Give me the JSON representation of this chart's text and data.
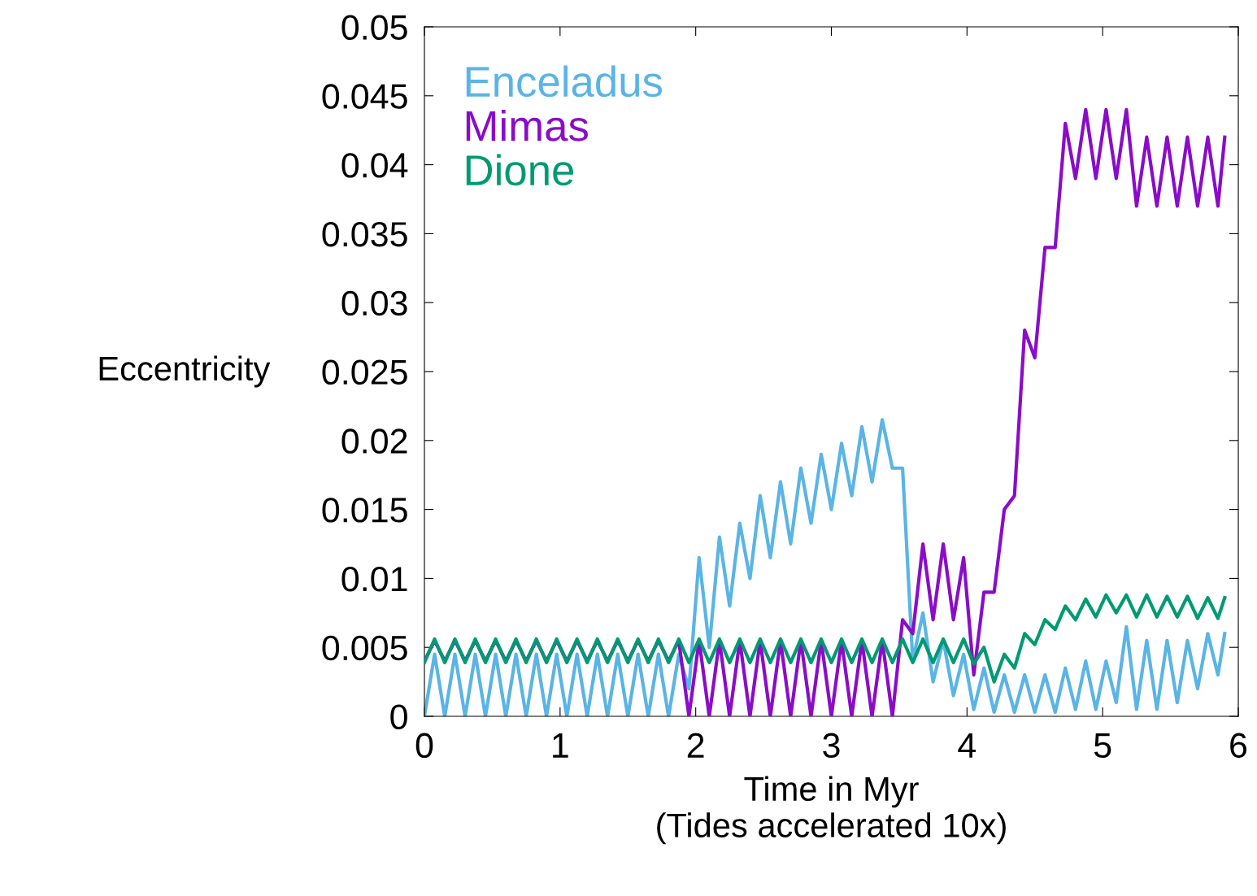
{
  "chart_data": {
    "type": "line",
    "xlabel": "Time in Myr\n(Tides accelerated 10x)",
    "ylabel": "Eccentricity",
    "xlim": [
      0,
      6
    ],
    "xticks": [
      0,
      1,
      2,
      3,
      4,
      5,
      6
    ],
    "ylim": [
      0,
      0.05
    ],
    "yticks": [
      0,
      0.005,
      0.01,
      0.015,
      0.02,
      0.025,
      0.03,
      0.035,
      0.04,
      0.045,
      0.05
    ],
    "grid": false,
    "legend": "top left",
    "marker": "none",
    "line_style": "solid",
    "x": [
      0,
      0.075,
      0.15,
      0.225,
      0.3,
      0.375,
      0.45,
      0.525,
      0.6,
      0.675,
      0.75,
      0.825,
      0.9,
      0.975,
      1.05,
      1.125,
      1.2,
      1.275,
      1.35,
      1.425,
      1.5,
      1.575,
      1.65,
      1.725,
      1.8,
      1.875,
      1.95,
      2.025,
      2.1,
      2.175,
      2.25,
      2.325,
      2.4,
      2.475,
      2.55,
      2.625,
      2.7,
      2.775,
      2.85,
      2.925,
      3.0,
      3.075,
      3.15,
      3.225,
      3.3,
      3.375,
      3.45,
      3.525,
      3.6,
      3.675,
      3.75,
      3.825,
      3.9,
      3.975,
      4.05,
      4.125,
      4.2,
      4.275,
      4.35,
      4.425,
      4.5,
      4.575,
      4.65,
      4.725,
      4.8,
      4.875,
      4.95,
      5.025,
      5.1,
      5.175,
      5.25,
      5.325,
      5.4,
      5.475,
      5.55,
      5.625,
      5.7,
      5.775,
      5.85,
      5.9
    ],
    "series": [
      {
        "name": "Enceladus",
        "color": "#5ab4e5",
        "values": [
          0,
          0.0045,
          0,
          0.0045,
          0,
          0.0045,
          0,
          0.0045,
          0,
          0.0045,
          0,
          0.0045,
          0,
          0.0045,
          0,
          0.0045,
          0,
          0.0045,
          0,
          0.0045,
          0,
          0.0045,
          0,
          0.0045,
          0,
          0.0045,
          0.002,
          0.0115,
          0.005,
          0.013,
          0.008,
          0.014,
          0.01,
          0.016,
          0.0115,
          0.017,
          0.0125,
          0.018,
          0.014,
          0.019,
          0.015,
          0.0198,
          0.016,
          0.021,
          0.017,
          0.0215,
          0.018,
          0.018,
          0.004,
          0.0075,
          0.0025,
          0.0055,
          0.0015,
          0.0045,
          0.0005,
          0.0035,
          0.0003,
          0.003,
          0.0003,
          0.003,
          0.0003,
          0.003,
          0.0003,
          0.0035,
          0.0005,
          0.004,
          0.0005,
          0.004,
          0.001,
          0.0065,
          0.0005,
          0.0055,
          0.0005,
          0.0055,
          0.001,
          0.0055,
          0.002,
          0.006,
          0.003,
          0.006
        ]
      },
      {
        "name": "Mimas",
        "color": "#8a0cc9",
        "values": [
          0.004,
          0.0055,
          0.004,
          0.0055,
          0.004,
          0.0055,
          0.004,
          0.0055,
          0.004,
          0.0055,
          0.004,
          0.0055,
          0.004,
          0.0055,
          0.004,
          0.0055,
          0.004,
          0.0055,
          0.004,
          0.0055,
          0.004,
          0.0055,
          0.004,
          0.0055,
          0.004,
          0.0055,
          0,
          0.0055,
          0,
          0.0055,
          0,
          0.0055,
          0,
          0.0055,
          0,
          0.0055,
          0,
          0.0055,
          0,
          0.0055,
          0,
          0.0055,
          0,
          0.0055,
          0,
          0.0055,
          0,
          0.007,
          0.006,
          0.0125,
          0.007,
          0.0125,
          0.007,
          0.0115,
          0.003,
          0.009,
          0.009,
          0.015,
          0.016,
          0.028,
          0.026,
          0.034,
          0.034,
          0.043,
          0.039,
          0.044,
          0.039,
          0.044,
          0.039,
          0.044,
          0.037,
          0.042,
          0.037,
          0.042,
          0.037,
          0.042,
          0.037,
          0.042,
          0.037,
          0.042
        ]
      },
      {
        "name": "Dione",
        "color": "#009a72",
        "values": [
          0.0039,
          0.0056,
          0.0039,
          0.0056,
          0.0039,
          0.0056,
          0.0039,
          0.0056,
          0.0039,
          0.0056,
          0.0039,
          0.0056,
          0.0039,
          0.0056,
          0.0039,
          0.0056,
          0.0039,
          0.0056,
          0.0039,
          0.0056,
          0.0039,
          0.0056,
          0.0039,
          0.0056,
          0.0039,
          0.0056,
          0.0039,
          0.0056,
          0.0039,
          0.0056,
          0.0039,
          0.0056,
          0.0039,
          0.0056,
          0.0039,
          0.0056,
          0.0039,
          0.0056,
          0.0039,
          0.0056,
          0.0039,
          0.0056,
          0.0039,
          0.0056,
          0.0039,
          0.0056,
          0.0039,
          0.0056,
          0.0039,
          0.0056,
          0.0039,
          0.0056,
          0.0039,
          0.0056,
          0.0038,
          0.005,
          0.0025,
          0.0045,
          0.0035,
          0.006,
          0.0052,
          0.007,
          0.0063,
          0.008,
          0.007,
          0.0085,
          0.0072,
          0.0088,
          0.0075,
          0.0088,
          0.0072,
          0.0088,
          0.0072,
          0.0087,
          0.0072,
          0.0087,
          0.0071,
          0.0086,
          0.0071,
          0.0086
        ]
      }
    ]
  }
}
